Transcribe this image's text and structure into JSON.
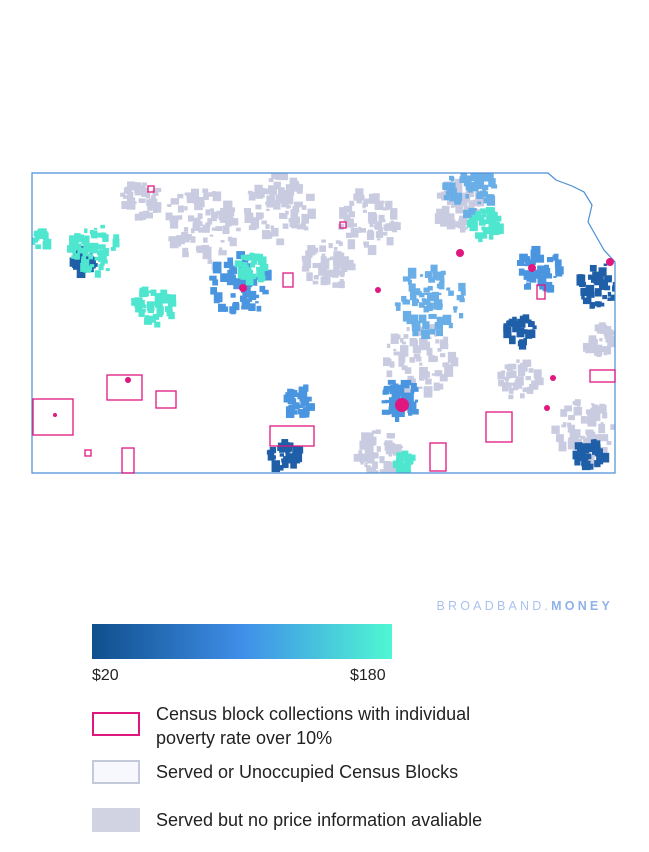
{
  "brand": {
    "name": "BROADBAND.",
    "emphasis": "MONEY"
  },
  "legend": {
    "gradient": {
      "colors": [
        "#0f4f8c",
        "#3f8ee8",
        "#4ff7d3"
      ],
      "min_label": "$20",
      "max_label": "$180"
    },
    "items": [
      {
        "label": "Census block collections with individual poverty rate over 10%",
        "fill": "#ffffff",
        "stroke": "#e0177f"
      },
      {
        "label": "Served or Unoccupied Census Blocks",
        "fill": "#f7f8fd",
        "stroke": "#c5c9dc"
      },
      {
        "label": "Served but no price information avaliable",
        "fill": "#d2d3e2",
        "stroke": "#d2d3e2"
      }
    ]
  }
}
